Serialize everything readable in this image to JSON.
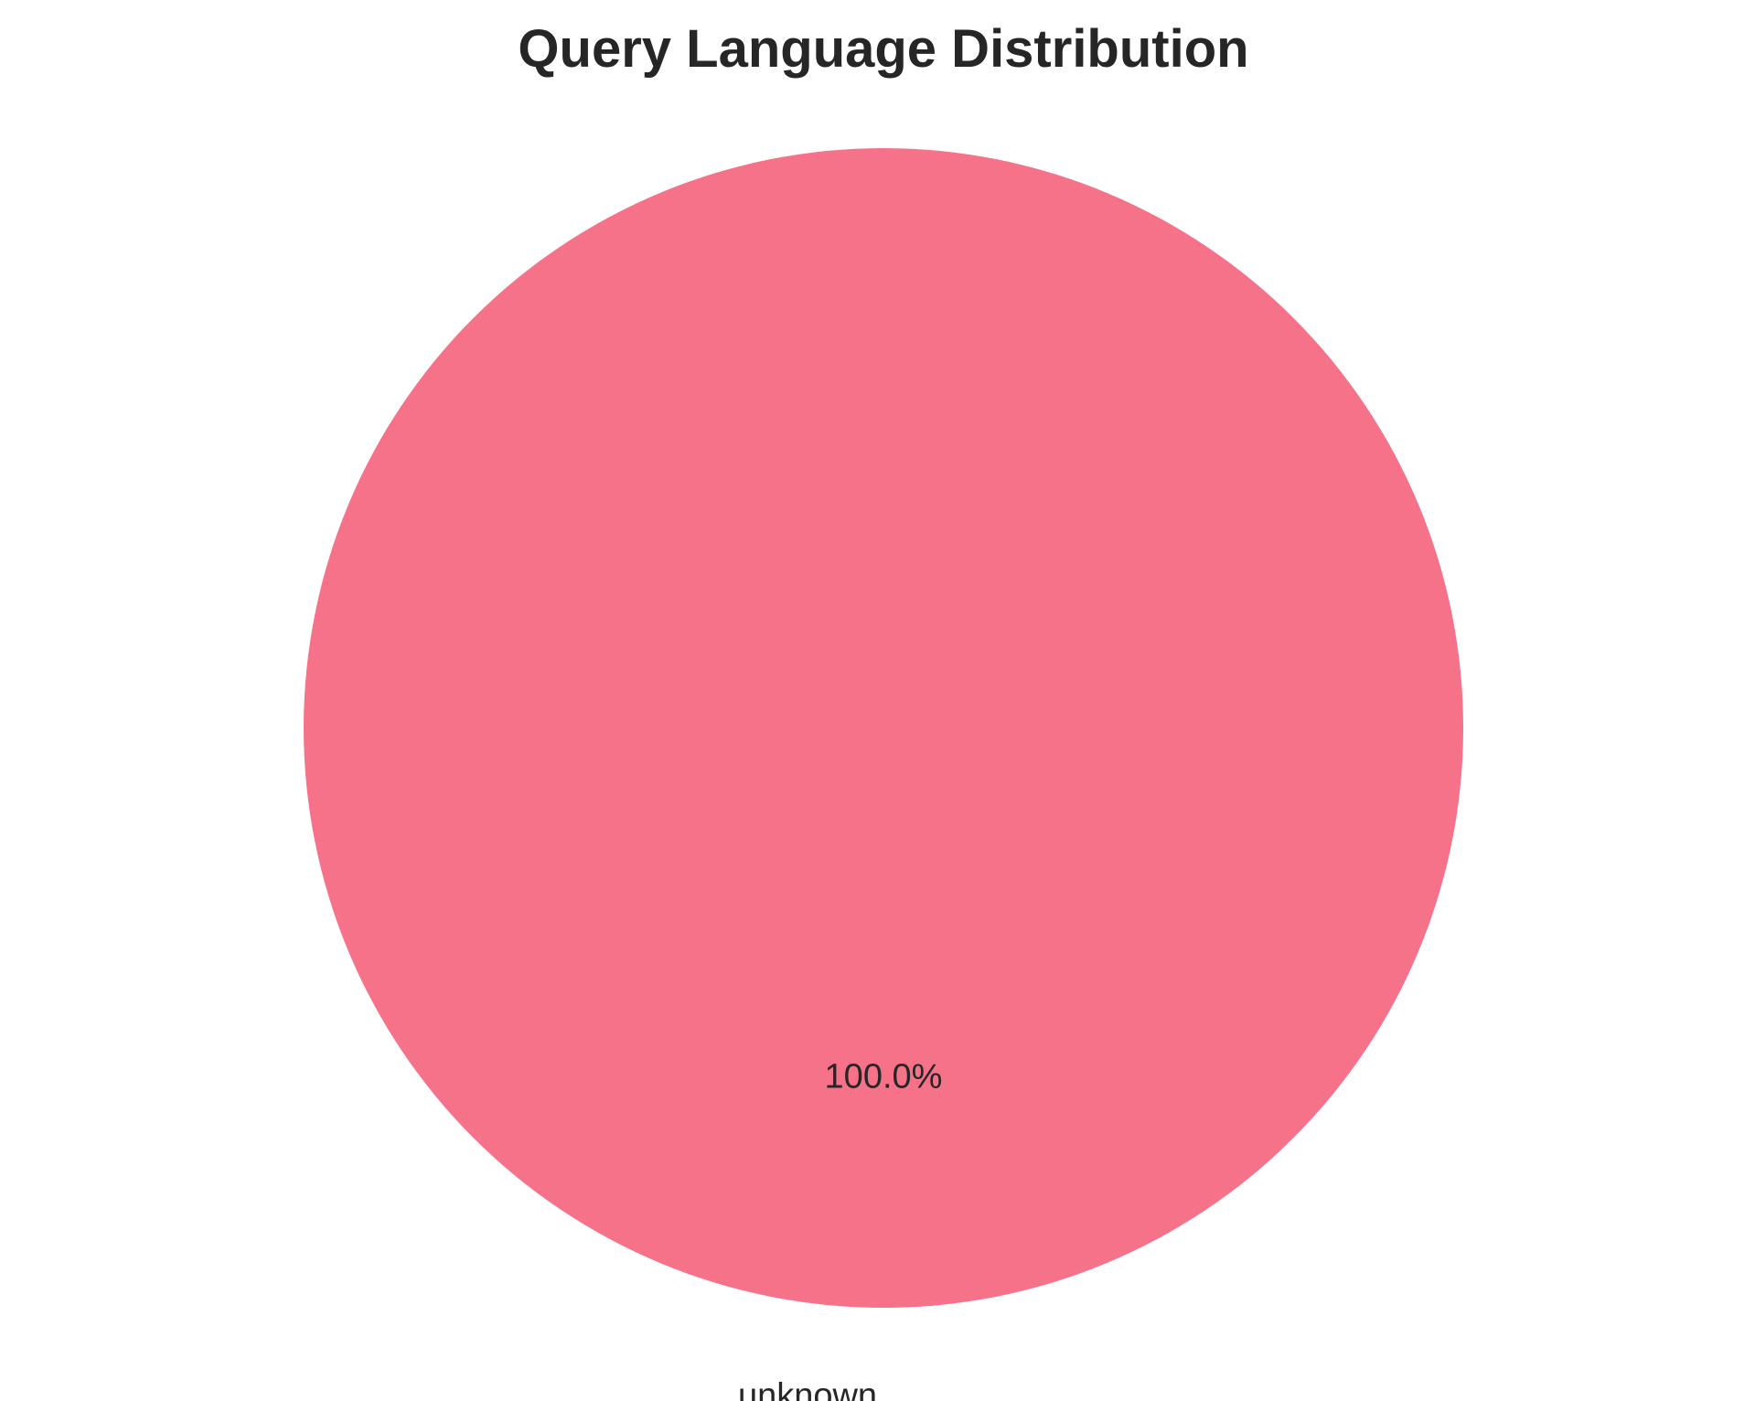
{
  "chart_data": {
    "type": "pie",
    "title": "Query Language Distribution",
    "slices": [
      {
        "label": "unknown",
        "value": 100.0,
        "pct_text": "100.0%",
        "color": "#f57289"
      }
    ],
    "legend": "none"
  }
}
